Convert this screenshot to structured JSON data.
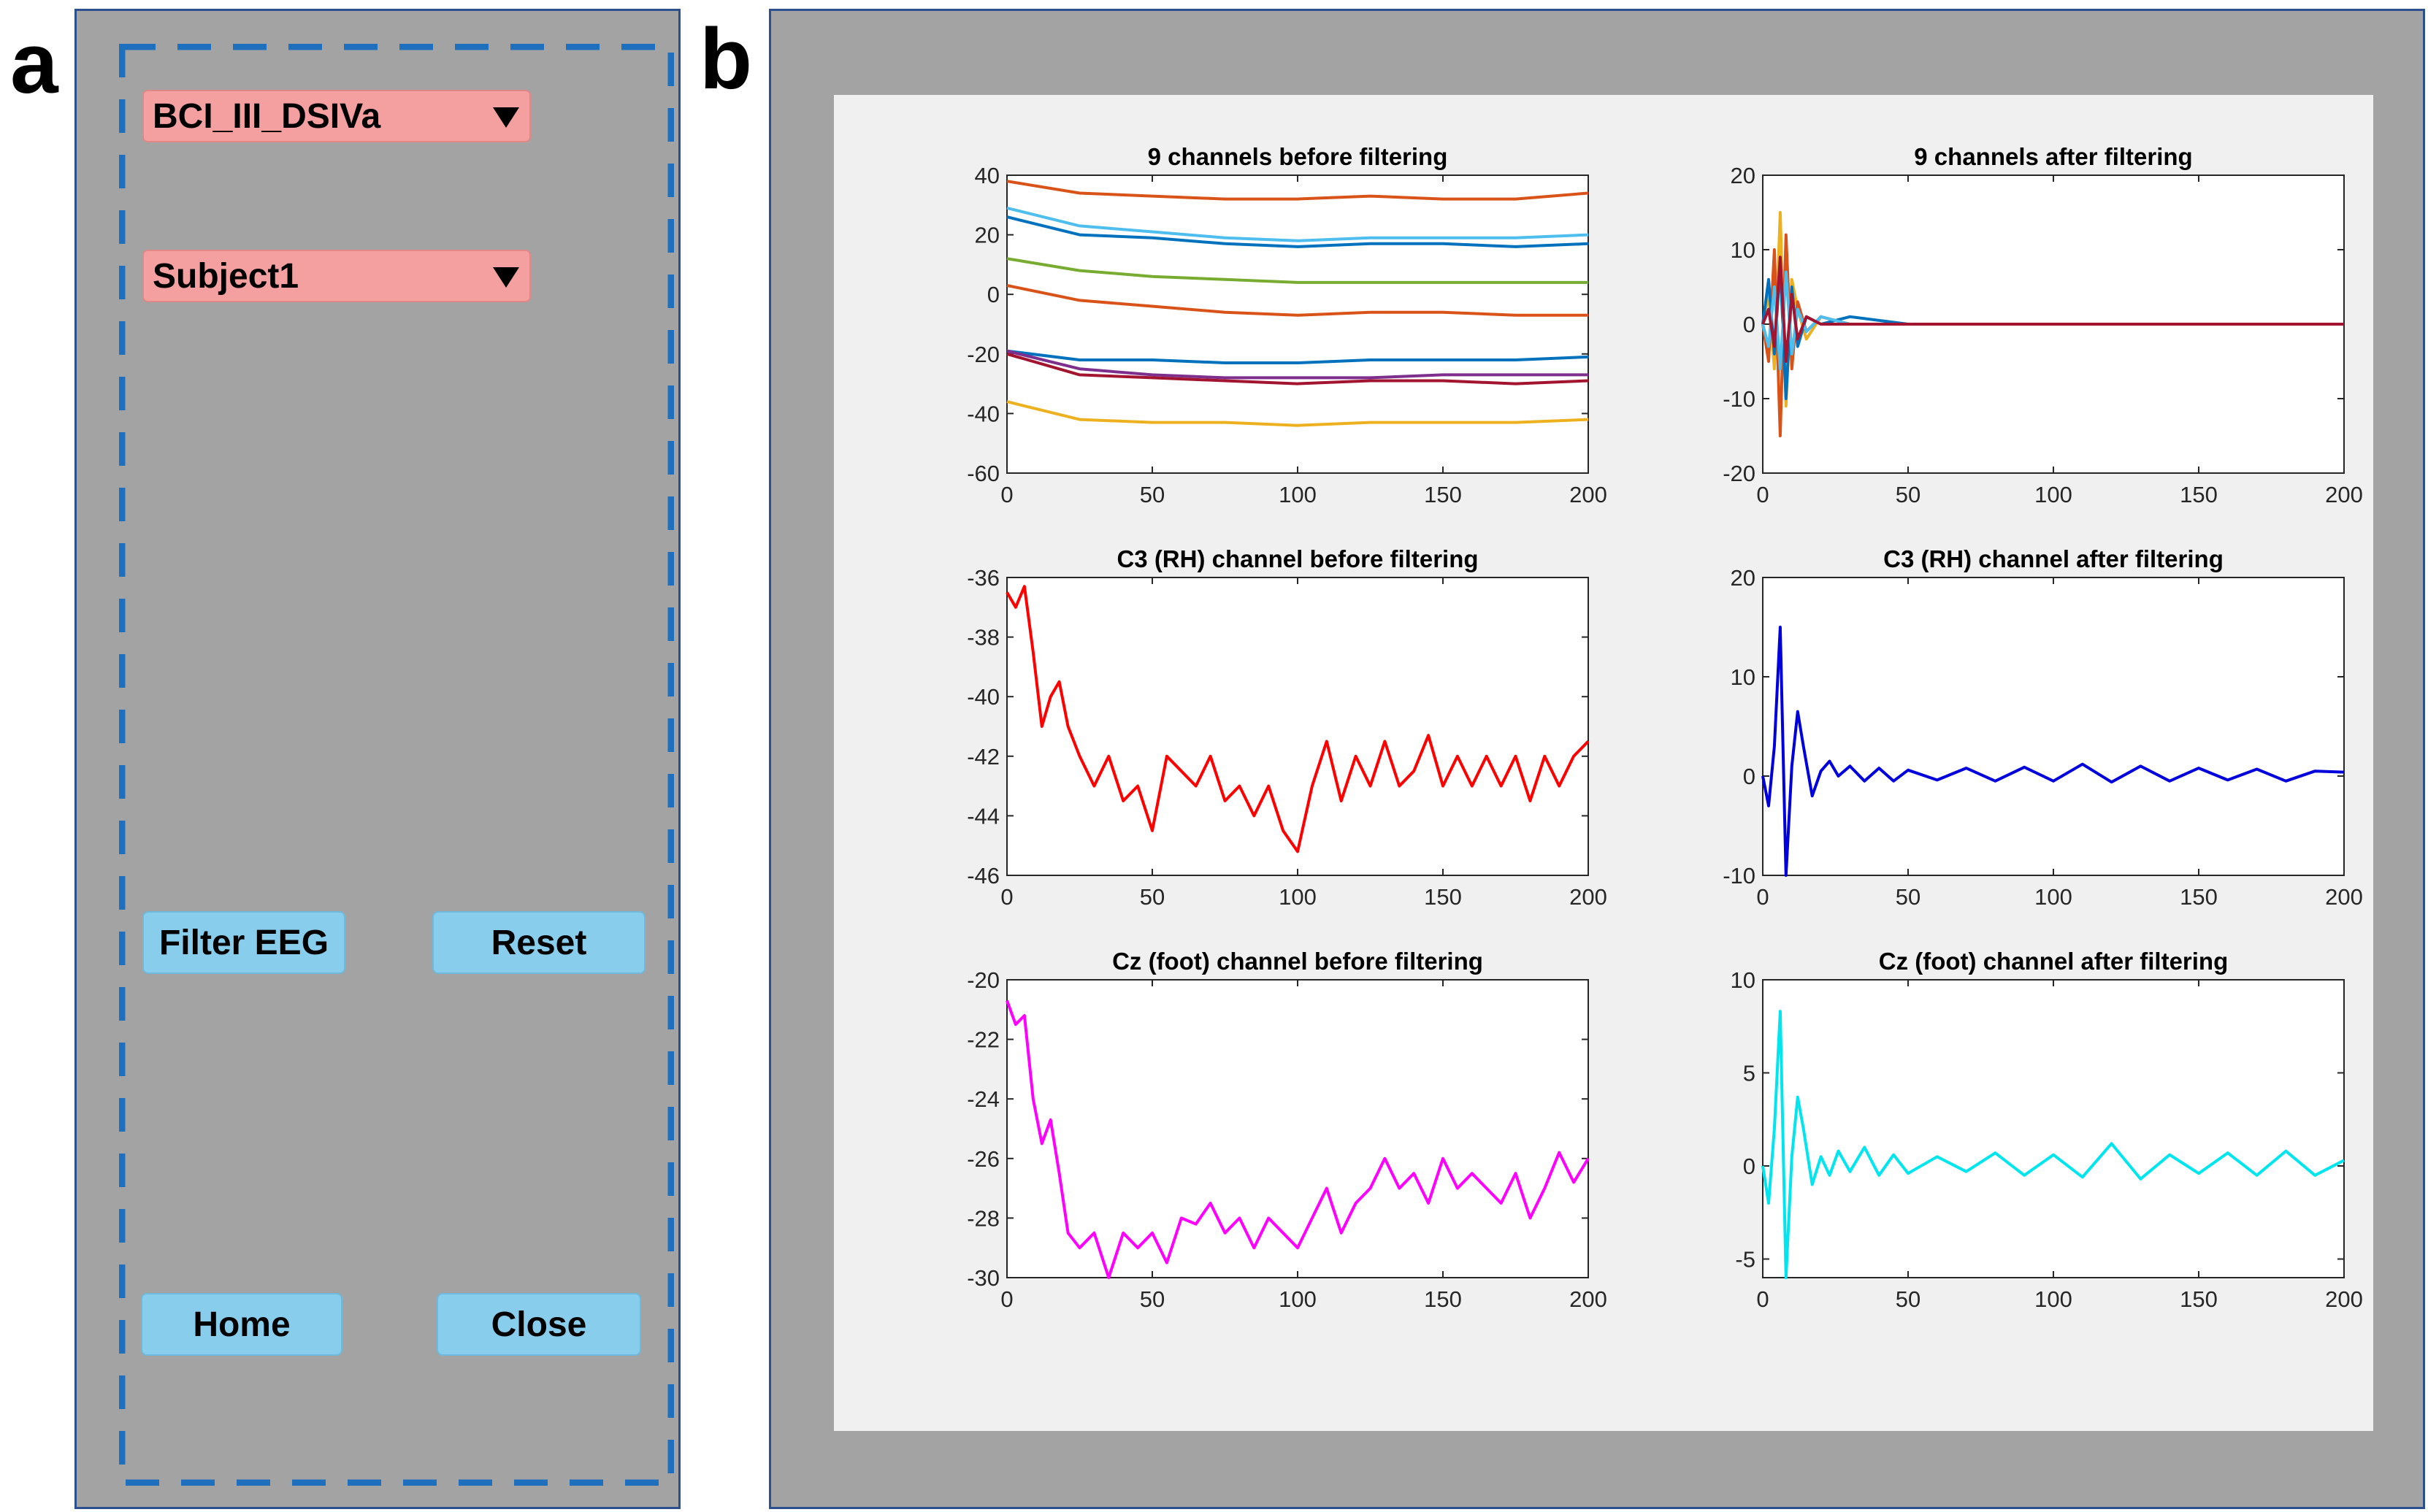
{
  "panel_labels": {
    "a": "a",
    "b": "b"
  },
  "controls": {
    "dataset_select": "BCI_III_DSIVa",
    "subject_select": "Subject1",
    "filter_button": "Filter EEG",
    "reset_button": "Reset",
    "home_button": "Home",
    "close_button": "Close"
  },
  "colors": {
    "panel_bg": "#a3a3a3",
    "popup_bg": "#f4a0a0",
    "button_bg": "#89cdec",
    "dash_border": "#1f6fbf",
    "figure_bg": "#f0f0f0"
  },
  "chart_data": [
    {
      "type": "line",
      "title": "9 channels before filtering",
      "xlim": [
        0,
        200
      ],
      "ylim": [
        -60,
        40
      ],
      "xticks": [
        "0",
        "50",
        "100",
        "150",
        "200"
      ],
      "yticks": [
        "40",
        "20",
        "0",
        "-20",
        "-40",
        "-60"
      ],
      "grid": false,
      "series": [
        {
          "color": "#d95319",
          "x": [
            0,
            25,
            50,
            75,
            100,
            125,
            150,
            175,
            200
          ],
          "values": [
            38,
            34,
            33,
            32,
            32,
            33,
            32,
            32,
            34
          ]
        },
        {
          "color": "#4dbeee",
          "x": [
            0,
            25,
            50,
            75,
            100,
            125,
            150,
            175,
            200
          ],
          "values": [
            29,
            23,
            21,
            19,
            18,
            19,
            19,
            19,
            20
          ]
        },
        {
          "color": "#0072bd",
          "x": [
            0,
            25,
            50,
            75,
            100,
            125,
            150,
            175,
            200
          ],
          "values": [
            26,
            20,
            19,
            17,
            16,
            17,
            17,
            16,
            17
          ]
        },
        {
          "color": "#77ac30",
          "x": [
            0,
            25,
            50,
            75,
            100,
            125,
            150,
            175,
            200
          ],
          "values": [
            12,
            8,
            6,
            5,
            4,
            4,
            4,
            4,
            4
          ]
        },
        {
          "color": "#d95319",
          "x": [
            0,
            25,
            50,
            75,
            100,
            125,
            150,
            175,
            200
          ],
          "values": [
            3,
            -2,
            -4,
            -6,
            -7,
            -6,
            -6,
            -7,
            -7
          ]
        },
        {
          "color": "#0072bd",
          "x": [
            0,
            25,
            50,
            75,
            100,
            125,
            150,
            175,
            200
          ],
          "values": [
            -19,
            -22,
            -22,
            -23,
            -23,
            -22,
            -22,
            -22,
            -21
          ]
        },
        {
          "color": "#7e2f8e",
          "x": [
            0,
            25,
            50,
            75,
            100,
            125,
            150,
            175,
            200
          ],
          "values": [
            -19,
            -25,
            -27,
            -28,
            -28,
            -28,
            -27,
            -27,
            -27
          ]
        },
        {
          "color": "#a2142f",
          "x": [
            0,
            25,
            50,
            75,
            100,
            125,
            150,
            175,
            200
          ],
          "values": [
            -20,
            -27,
            -28,
            -29,
            -30,
            -29,
            -29,
            -30,
            -29
          ]
        },
        {
          "color": "#edb120",
          "x": [
            0,
            25,
            50,
            75,
            100,
            125,
            150,
            175,
            200
          ],
          "values": [
            -36,
            -42,
            -43,
            -43,
            -44,
            -43,
            -43,
            -43,
            -42
          ]
        }
      ]
    },
    {
      "type": "line",
      "title": "9 channels after filtering",
      "xlim": [
        0,
        200
      ],
      "ylim": [
        -20,
        20
      ],
      "xticks": [
        "0",
        "50",
        "100",
        "150",
        "200"
      ],
      "yticks": [
        "20",
        "10",
        "0",
        "-10",
        "-20"
      ],
      "grid": false,
      "series": [
        {
          "color": "#edb120",
          "x": [
            0,
            2,
            4,
            6,
            8,
            10,
            12,
            15,
            20,
            30,
            50,
            100,
            150,
            200
          ],
          "values": [
            0,
            4,
            -6,
            15,
            -11,
            6,
            2,
            -2,
            1,
            0,
            0,
            0,
            0,
            0
          ]
        },
        {
          "color": "#d95319",
          "x": [
            0,
            2,
            4,
            6,
            8,
            10,
            12,
            15,
            20,
            30,
            50,
            100,
            150,
            200
          ],
          "values": [
            0,
            -5,
            10,
            -15,
            12,
            -6,
            3,
            -1,
            1,
            0,
            0,
            0,
            0,
            0
          ]
        },
        {
          "color": "#0072bd",
          "x": [
            0,
            2,
            4,
            6,
            8,
            10,
            12,
            15,
            20,
            30,
            50,
            100,
            150,
            200
          ],
          "values": [
            0,
            6,
            -4,
            8,
            -10,
            5,
            -3,
            1,
            0,
            1,
            0,
            0,
            0,
            0
          ]
        },
        {
          "color": "#4dbeee",
          "x": [
            0,
            2,
            4,
            6,
            8,
            10,
            12,
            15,
            20,
            30,
            50,
            100,
            150,
            200
          ],
          "values": [
            0,
            -3,
            5,
            -6,
            7,
            -4,
            2,
            -1,
            1,
            0,
            0,
            0,
            0,
            0
          ]
        },
        {
          "color": "#a2142f",
          "x": [
            0,
            2,
            4,
            6,
            8,
            10,
            12,
            15,
            20,
            30,
            50,
            100,
            150,
            200
          ],
          "values": [
            0,
            2,
            -3,
            9,
            -5,
            4,
            -2,
            1,
            0,
            0,
            0,
            0,
            0,
            0
          ]
        }
      ]
    },
    {
      "type": "line",
      "title": "C3 (RH) channel before filtering",
      "xlim": [
        0,
        200
      ],
      "ylim": [
        -46,
        -36
      ],
      "xticks": [
        "0",
        "50",
        "100",
        "150",
        "200"
      ],
      "yticks": [
        "-36",
        "-38",
        "-40",
        "-42",
        "-44",
        "-46"
      ],
      "grid": false,
      "series": [
        {
          "color": "#ff0000",
          "x": [
            0,
            3,
            6,
            9,
            12,
            15,
            18,
            21,
            25,
            30,
            35,
            40,
            45,
            50,
            55,
            60,
            65,
            70,
            75,
            80,
            85,
            90,
            95,
            100,
            105,
            110,
            115,
            120,
            125,
            130,
            135,
            140,
            145,
            150,
            155,
            160,
            165,
            170,
            175,
            180,
            185,
            190,
            195,
            200
          ],
          "values": [
            -36.5,
            -37,
            -36.3,
            -38.5,
            -41,
            -40,
            -39.5,
            -41,
            -42,
            -43,
            -42,
            -43.5,
            -43,
            -44.5,
            -42,
            -42.5,
            -43,
            -42,
            -43.5,
            -43,
            -44,
            -43,
            -44.5,
            -45.2,
            -43,
            -41.5,
            -43.5,
            -42,
            -43,
            -41.5,
            -43,
            -42.5,
            -41.3,
            -43,
            -42,
            -43,
            -42,
            -43,
            -42,
            -43.5,
            -42,
            -43,
            -42,
            -41.5
          ]
        }
      ]
    },
    {
      "type": "line",
      "title": "C3 (RH) channel after filtering",
      "xlim": [
        0,
        200
      ],
      "ylim": [
        -10,
        20
      ],
      "xticks": [
        "0",
        "50",
        "100",
        "150",
        "200"
      ],
      "yticks": [
        "20",
        "10",
        "0",
        "-10"
      ],
      "grid": false,
      "series": [
        {
          "color": "#0000dd",
          "x": [
            0,
            2,
            4,
            6,
            8,
            10,
            12,
            14,
            17,
            20,
            23,
            26,
            30,
            35,
            40,
            45,
            50,
            60,
            70,
            80,
            90,
            100,
            110,
            120,
            130,
            140,
            150,
            160,
            170,
            180,
            190,
            200
          ],
          "values": [
            0,
            -3,
            3,
            15,
            -10,
            1,
            6.5,
            3,
            -2,
            0.5,
            1.5,
            0,
            1,
            -0.5,
            0.8,
            -0.5,
            0.6,
            -0.4,
            0.8,
            -0.5,
            0.9,
            -0.5,
            1.2,
            -0.6,
            1,
            -0.5,
            0.8,
            -0.4,
            0.7,
            -0.5,
            0.5,
            0.4
          ]
        }
      ]
    },
    {
      "type": "line",
      "title": "Cz (foot) channel before filtering",
      "xlim": [
        0,
        200
      ],
      "ylim": [
        -30,
        -20
      ],
      "xticks": [
        "0",
        "50",
        "100",
        "150",
        "200"
      ],
      "yticks": [
        "-20",
        "-22",
        "-24",
        "-26",
        "-28",
        "-30"
      ],
      "grid": false,
      "series": [
        {
          "color": "#ff00ff",
          "x": [
            0,
            3,
            6,
            9,
            12,
            15,
            18,
            21,
            25,
            30,
            35,
            40,
            45,
            50,
            55,
            60,
            65,
            70,
            75,
            80,
            85,
            90,
            95,
            100,
            105,
            110,
            115,
            120,
            125,
            130,
            135,
            140,
            145,
            150,
            155,
            160,
            165,
            170,
            175,
            180,
            185,
            190,
            195,
            200
          ],
          "values": [
            -20.7,
            -21.5,
            -21.2,
            -24,
            -25.5,
            -24.7,
            -26.5,
            -28.5,
            -29,
            -28.5,
            -30,
            -28.5,
            -29,
            -28.5,
            -29.5,
            -28,
            -28.2,
            -27.5,
            -28.5,
            -28,
            -29,
            -28,
            -28.5,
            -29,
            -28,
            -27,
            -28.5,
            -27.5,
            -27,
            -26,
            -27,
            -26.5,
            -27.5,
            -26,
            -27,
            -26.5,
            -27,
            -27.5,
            -26.5,
            -28,
            -27,
            -25.8,
            -26.8,
            -26
          ]
        }
      ]
    },
    {
      "type": "line",
      "title": "Cz (foot) channel after filtering",
      "xlim": [
        0,
        200
      ],
      "ylim": [
        -6,
        10
      ],
      "xticks": [
        "0",
        "50",
        "100",
        "150",
        "200"
      ],
      "yticks": [
        "10",
        "5",
        "0",
        "-5"
      ],
      "grid": false,
      "series": [
        {
          "color": "#00e5ee",
          "x": [
            0,
            2,
            4,
            6,
            8,
            10,
            12,
            14,
            17,
            20,
            23,
            26,
            30,
            35,
            40,
            45,
            50,
            60,
            70,
            80,
            90,
            100,
            110,
            120,
            130,
            140,
            150,
            160,
            170,
            180,
            190,
            200
          ],
          "values": [
            0,
            -2,
            2,
            8.3,
            -6,
            0.5,
            3.7,
            2,
            -1,
            0.5,
            -0.5,
            0.8,
            -0.3,
            1,
            -0.5,
            0.6,
            -0.4,
            0.5,
            -0.3,
            0.7,
            -0.5,
            0.6,
            -0.6,
            1.2,
            -0.7,
            0.6,
            -0.4,
            0.7,
            -0.5,
            0.8,
            -0.5,
            0.3
          ]
        }
      ]
    }
  ]
}
